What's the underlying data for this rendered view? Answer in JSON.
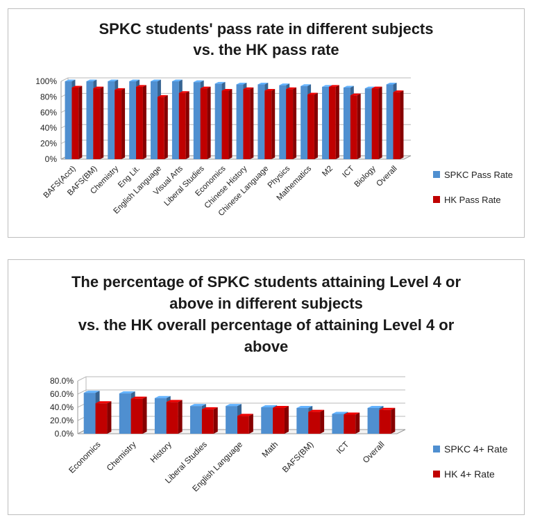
{
  "charts": [
    {
      "title_lines": [
        "SPKC students' pass rate in different subjects",
        "vs. the HK pass rate"
      ],
      "legend_position": "right",
      "chart_data": {
        "type": "bar",
        "title": "SPKC students' pass rate in different subjects vs. the HK pass rate",
        "categories": [
          "BAFS(Acct)",
          "BAFS(BM)",
          "Chemistry",
          "Eng Lit.",
          "English Language",
          "Visual Arts",
          "Liberal Studies",
          "Economics",
          "Chinese History",
          "Chinese Language",
          "Physics",
          "Mathematics",
          "M2",
          "ICT",
          "Biology",
          "Overall"
        ],
        "series": [
          {
            "name": "SPKC Pass Rate",
            "color": "#4f8fd0",
            "values": [
              100,
              100,
              100,
              100,
              100,
              100,
              99,
              97,
              96,
              96,
              95,
              94,
              93,
              92,
              91,
              96
            ]
          },
          {
            "name": "HK Pass Rate",
            "color": "#c00000",
            "values": [
              92,
              91,
              89,
              93,
              80,
              85,
              91,
              88,
              90,
              88,
              90,
              83,
              93,
              82,
              91,
              86
            ]
          }
        ],
        "y_ticks": [
          "0%",
          "20%",
          "40%",
          "60%",
          "80%",
          "100%"
        ],
        "ylim": [
          0,
          100
        ],
        "grid": true
      }
    },
    {
      "title_lines": [
        "The percentage of SPKC students attaining Level 4 or",
        "above in different subjects",
        "vs. the HK overall percentage of attaining Level 4 or",
        "above"
      ],
      "legend_position": "right",
      "chart_data": {
        "type": "bar",
        "title": "The percentage of SPKC students attaining Level 4 or above in different subjects vs. the HK overall percentage of attaining Level 4 or above",
        "categories": [
          "Economics",
          "Chemistry",
          "History",
          "Liberal Studies",
          "English Language",
          "Math",
          "BAFS(BM)",
          "ICT",
          "Overall"
        ],
        "series": [
          {
            "name": "SPKC 4+ Rate",
            "color": "#4f8fd0",
            "values": [
              62,
              61,
              54,
              42,
              42,
              40,
              39,
              30,
              39
            ]
          },
          {
            "name": "HK 4+ Rate",
            "color": "#c00000",
            "values": [
              46,
              53,
              48,
              37,
              27,
              39,
              33,
              29,
              36
            ]
          }
        ],
        "y_ticks": [
          "0.0%",
          "20.0%",
          "40.0%",
          "60.0%",
          "80.0%"
        ],
        "ylim": [
          0,
          80
        ],
        "grid": true
      }
    }
  ]
}
